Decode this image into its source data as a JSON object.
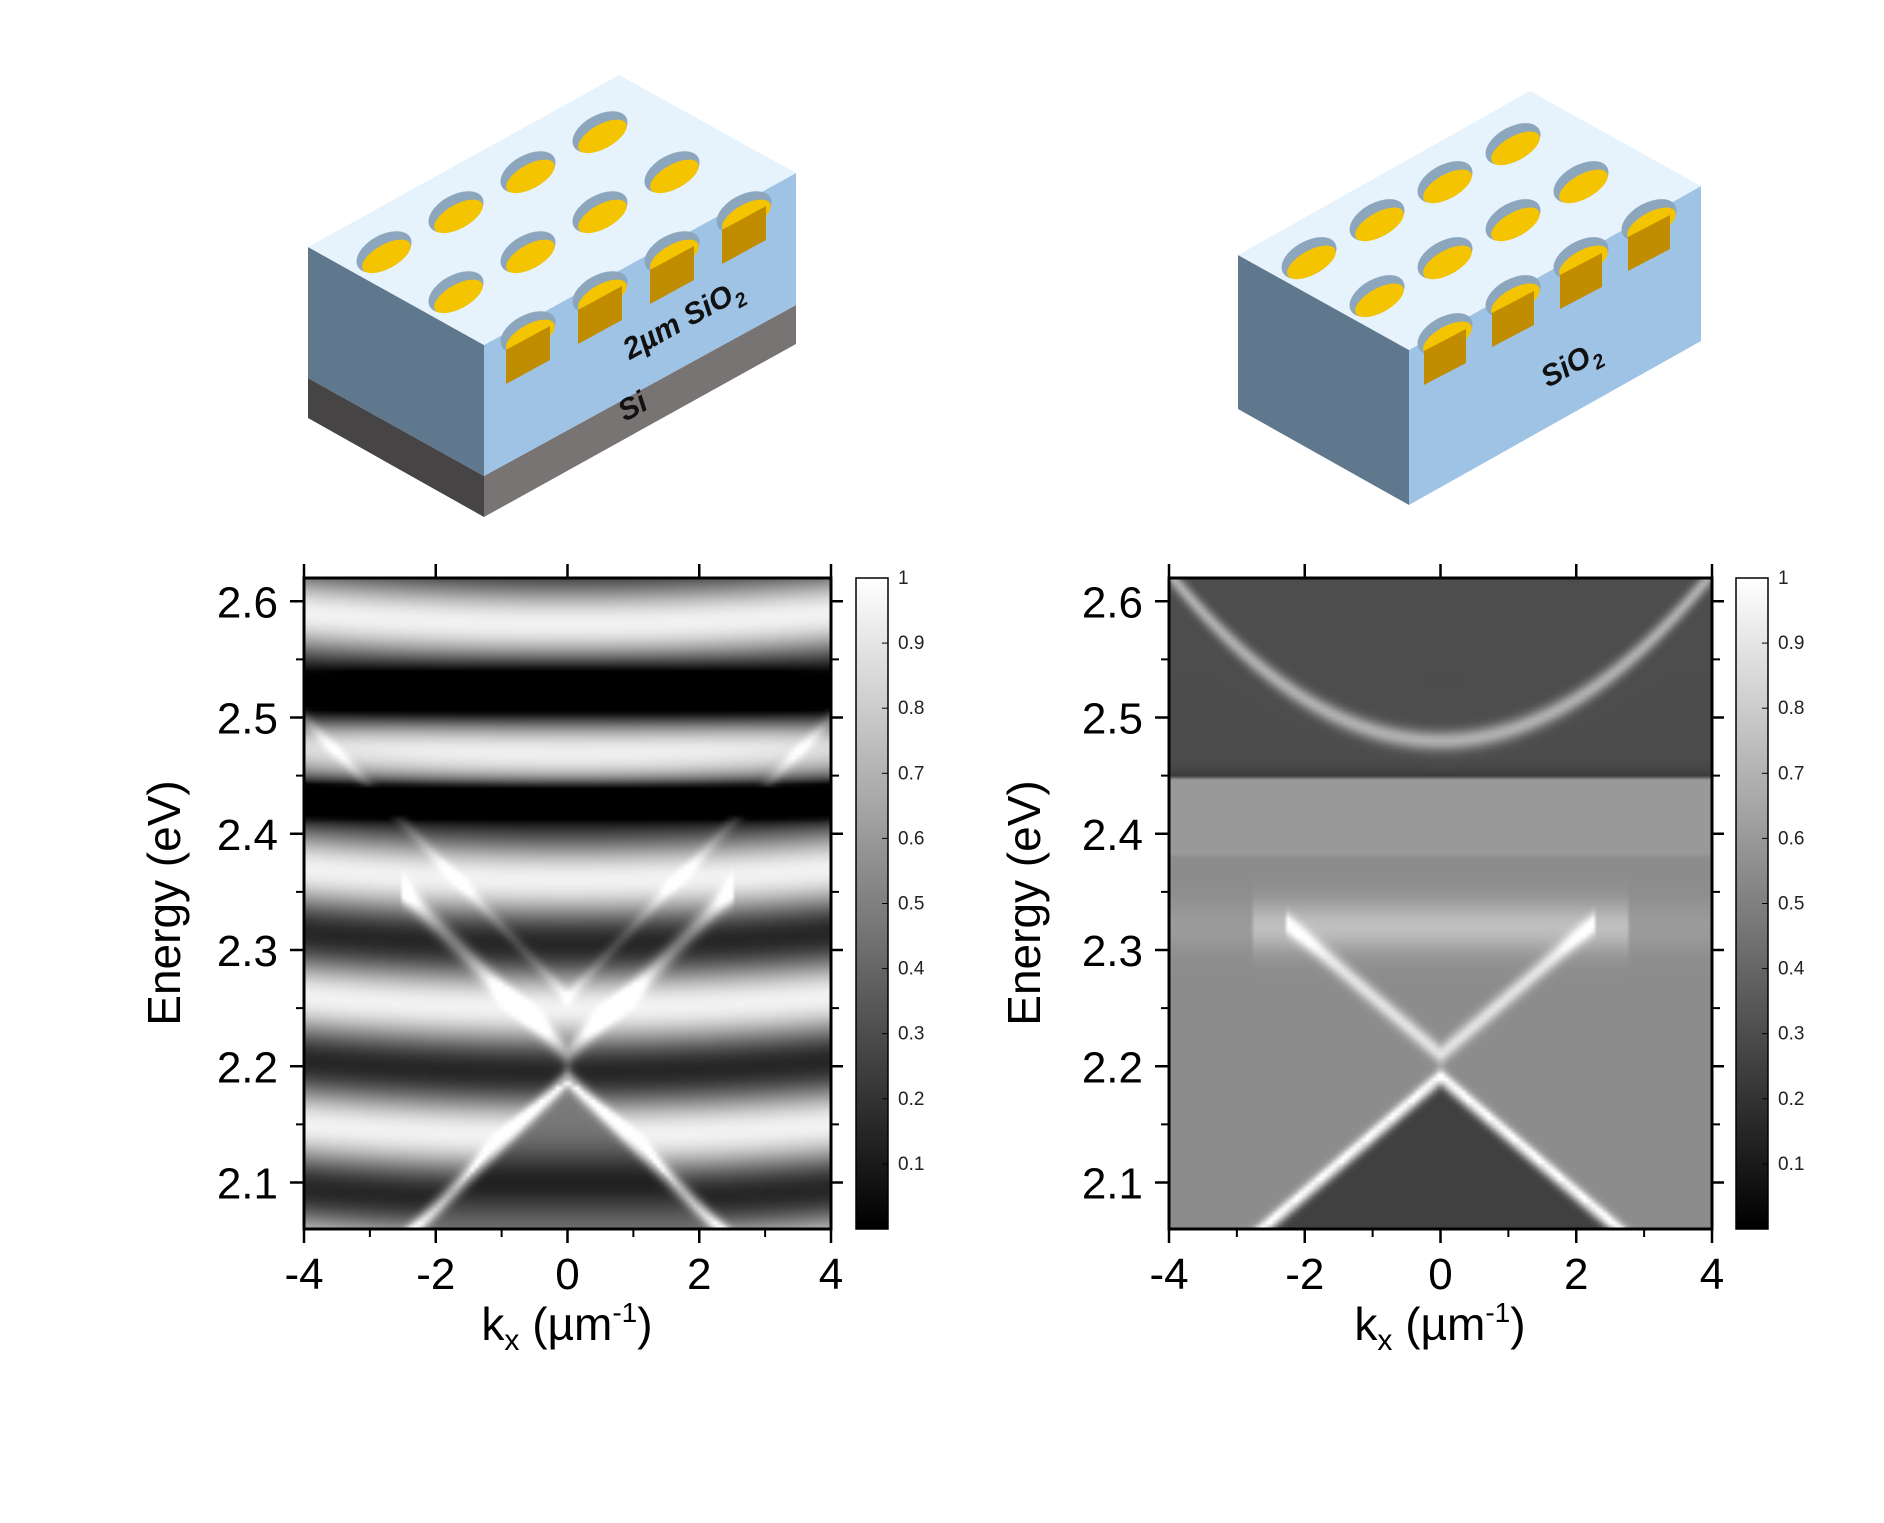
{
  "chart_data": [
    {
      "type": "heatmap",
      "xlabel": "k",
      "xlabel_sub": "x",
      "xlabel_unit_pre": " (µm",
      "xlabel_unit_sup": "-1",
      "xlabel_unit_post": ")",
      "ylabel": "Energy (eV)",
      "xlim": [
        -4,
        4
      ],
      "ylim": [
        2.06,
        2.62
      ],
      "x_ticks": [
        -4,
        -2,
        0,
        2,
        4
      ],
      "x_tick_labels": [
        "-4",
        "-2",
        "0",
        "2",
        "4"
      ],
      "y_ticks": [
        2.1,
        2.2,
        2.3,
        2.4,
        2.5,
        2.6
      ],
      "y_tick_labels": [
        "2.1",
        "2.2",
        "2.3",
        "2.4",
        "2.5",
        "2.6"
      ],
      "colorbar": {
        "range": [
          0,
          1
        ],
        "ticks": [
          0.1,
          0.2,
          0.3,
          0.4,
          0.5,
          0.6,
          0.7,
          0.8,
          0.9,
          1
        ],
        "tick_labels": [
          "0.1",
          "0.2",
          "0.3",
          "0.4",
          "0.5",
          "0.6",
          "0.7",
          "0.8",
          "0.9",
          "1"
        ],
        "colormap": "gray"
      },
      "features": {
        "cone_apex_energy_eV": 2.19,
        "cone_crossing_energy_eV": 2.21,
        "cone_slope_eV_per_um_inv": 0.056,
        "dark_bands_eV": [
          2.52,
          2.43,
          2.26,
          2.1
        ],
        "bright_bands_eV": [
          2.58,
          2.47,
          2.36,
          2.19
        ],
        "fringe_contrast": "high"
      }
    },
    {
      "type": "heatmap",
      "xlabel": "k",
      "xlabel_sub": "x",
      "xlabel_unit_pre": " (µm",
      "xlabel_unit_sup": "-1",
      "xlabel_unit_post": ")",
      "ylabel": "Energy (eV)",
      "xlim": [
        -4,
        4
      ],
      "ylim": [
        2.06,
        2.62
      ],
      "x_ticks": [
        -4,
        -2,
        0,
        2,
        4
      ],
      "x_tick_labels": [
        "-4",
        "-2",
        "0",
        "2",
        "4"
      ],
      "y_ticks": [
        2.1,
        2.2,
        2.3,
        2.4,
        2.5,
        2.6
      ],
      "y_tick_labels": [
        "2.1",
        "2.2",
        "2.3",
        "2.4",
        "2.5",
        "2.6"
      ],
      "colorbar": {
        "range": [
          0,
          1
        ],
        "ticks": [
          0.1,
          0.2,
          0.3,
          0.4,
          0.5,
          0.6,
          0.7,
          0.8,
          0.9,
          1
        ],
        "tick_labels": [
          "0.1",
          "0.2",
          "0.3",
          "0.4",
          "0.5",
          "0.6",
          "0.7",
          "0.8",
          "0.9",
          "1"
        ],
        "colormap": "gray"
      },
      "features": {
        "cone_apex_energy_eV": 2.19,
        "cone_crossing_energy_eV": 2.21,
        "cone_slope_eV_per_um_inv": 0.05,
        "dark_band_eV": 2.43,
        "upper_band_min_eV": 2.48,
        "bright_band_eV": 2.32
      }
    }
  ],
  "schematics": [
    {
      "top_layer": "2µm SiO",
      "top_layer_sub": "2",
      "bottom_layer": "Si"
    },
    {
      "top_layer": "SiO",
      "top_layer_sub": "2"
    }
  ],
  "colors": {
    "oxide_top": "#e6f3fc",
    "oxide_front": "#9fc3e5",
    "oxide_side": "#5f788e",
    "silicon_front": "#787474",
    "silicon_side": "#474445",
    "gold": "#f4c400",
    "gold_dark": "#c08c00",
    "hole_wall": "#8ca6bd"
  }
}
